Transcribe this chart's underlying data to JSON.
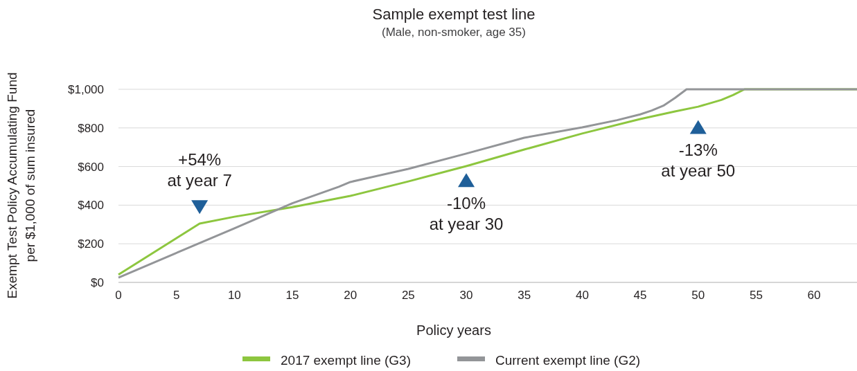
{
  "chart_data": {
    "type": "line",
    "title": "Sample exempt test line",
    "subtitle": "(Male, non-smoker, age 35)",
    "xlabel": "Policy years",
    "ylabel": "Exempt Test Policy Accumulating Fund\nper $1,000 of sum insured",
    "series": [
      {
        "name": "2017 exempt line (G3)",
        "color": "#8dc63f",
        "x": [
          0,
          7,
          10,
          15,
          20,
          25,
          30,
          35,
          40,
          45,
          48,
          50,
          52,
          53,
          54,
          63.7
        ],
        "values": [
          40,
          305,
          340,
          390,
          448,
          523,
          602,
          688,
          771,
          846,
          885,
          910,
          945,
          970,
          1000,
          1000
        ]
      },
      {
        "name": "Current exempt line (G2)",
        "color": "#939598",
        "x": [
          0,
          10,
          15,
          19,
          20,
          25,
          30,
          35,
          40,
          43,
          45,
          46,
          47,
          48,
          49,
          63.7
        ],
        "values": [
          25,
          280,
          410,
          495,
          520,
          588,
          667,
          749,
          803,
          840,
          870,
          890,
          915,
          955,
          1000,
          1000
        ]
      }
    ],
    "annotations": [
      {
        "text": "+54%\nat year 7",
        "x": 7,
        "y": 390
      },
      {
        "text": "-10%\nat year 30",
        "x": 30,
        "y": 530
      },
      {
        "text": "-13%\nat year 50",
        "x": 50,
        "y": 805
      }
    ],
    "xlim": [
      0,
      63.7
    ],
    "xticks": [
      0,
      5,
      10,
      15,
      20,
      25,
      30,
      35,
      40,
      45,
      50,
      55,
      60
    ],
    "ylim": [
      0,
      1000
    ],
    "yticks": [
      {
        "value": 0,
        "label": "$0"
      },
      {
        "value": 200,
        "label": "$200"
      },
      {
        "value": 400,
        "label": "$400"
      },
      {
        "value": 600,
        "label": "$600"
      },
      {
        "value": 800,
        "label": "$800"
      },
      {
        "value": 1000,
        "label": "$1,000"
      }
    ],
    "grid": "y",
    "legend": "bottom",
    "line_style": "solid"
  }
}
